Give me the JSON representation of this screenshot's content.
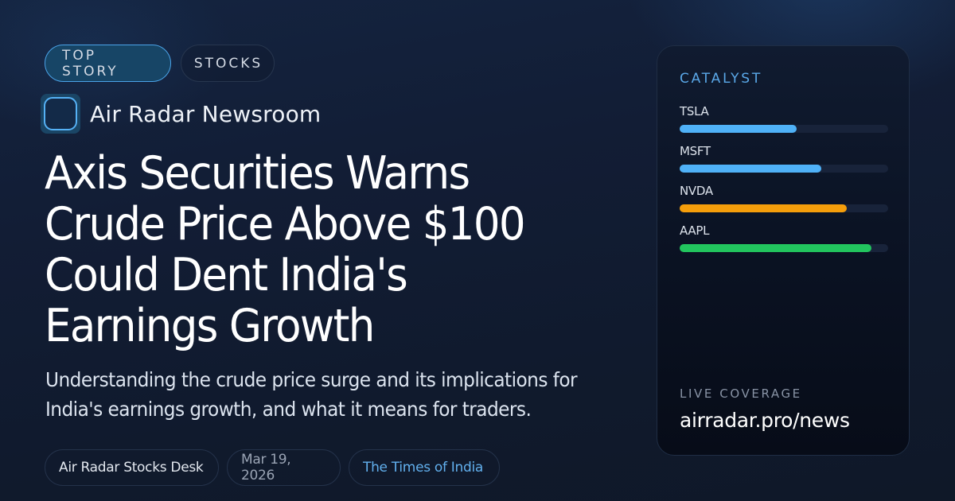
{
  "tags": [
    {
      "label": "TOP STORY",
      "style": "primary"
    },
    {
      "label": "STOCKS",
      "style": "secondary"
    }
  ],
  "source": {
    "icon": "app-logo-icon",
    "name": "Air Radar Newsroom"
  },
  "article": {
    "headline": "Axis Securities Warns Crude Price Above $100 Could Dent India's Earnings Growth",
    "summary": "Understanding the crude price surge and its implications for India's earnings growth, and what it means for traders."
  },
  "meta": {
    "author": "Air Radar Stocks Desk",
    "date": "Mar 19, 2026",
    "outlet": "The Times of India"
  },
  "panel": {
    "title": "CATALYST",
    "items": [
      {
        "ticker": "TSLA",
        "percent": 56,
        "color": "#4fb1f7"
      },
      {
        "ticker": "MSFT",
        "percent": 68,
        "color": "#4fb1f7"
      },
      {
        "ticker": "NVDA",
        "percent": 80,
        "color": "#f59e0b"
      },
      {
        "ticker": "AAPL",
        "percent": 92,
        "color": "#22c55e"
      }
    ],
    "coverage_label": "LIVE COVERAGE",
    "coverage_url": "airradar.pro/news"
  },
  "colors": {
    "accent": "#4aa3e8",
    "background": "#121d35",
    "panel": "#0b1324",
    "outlet_link": "#62b0ee"
  }
}
